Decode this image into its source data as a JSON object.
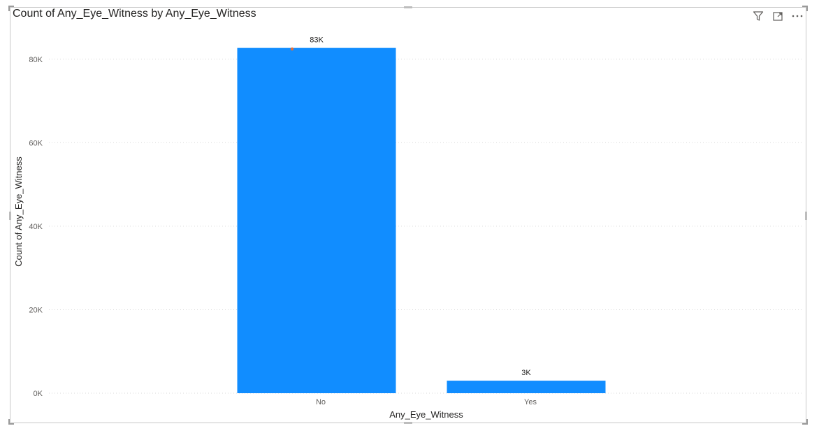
{
  "visual": {
    "title": "Count of Any_Eye_Witness by Any_Eye_Witness",
    "toolbar": {
      "filter_icon": "filter-icon",
      "focus_icon": "focus-mode-icon",
      "more_icon": "more-options-icon"
    }
  },
  "chart_data": {
    "type": "bar",
    "categories": [
      "No",
      "Yes"
    ],
    "values": [
      82700,
      3000
    ],
    "data_labels": [
      "83K",
      "3K"
    ],
    "xlabel": "Any_Eye_Witness",
    "ylabel": "Count of Any_Eye_Witness",
    "ylim": [
      0,
      90000
    ],
    "yticks": [
      0,
      20000,
      40000,
      60000,
      80000
    ],
    "ytick_labels": [
      "0K",
      "20K",
      "40K",
      "60K",
      "80K"
    ],
    "grid": true,
    "bar_color": "#118DFF",
    "marker_color": "#E66C37"
  }
}
